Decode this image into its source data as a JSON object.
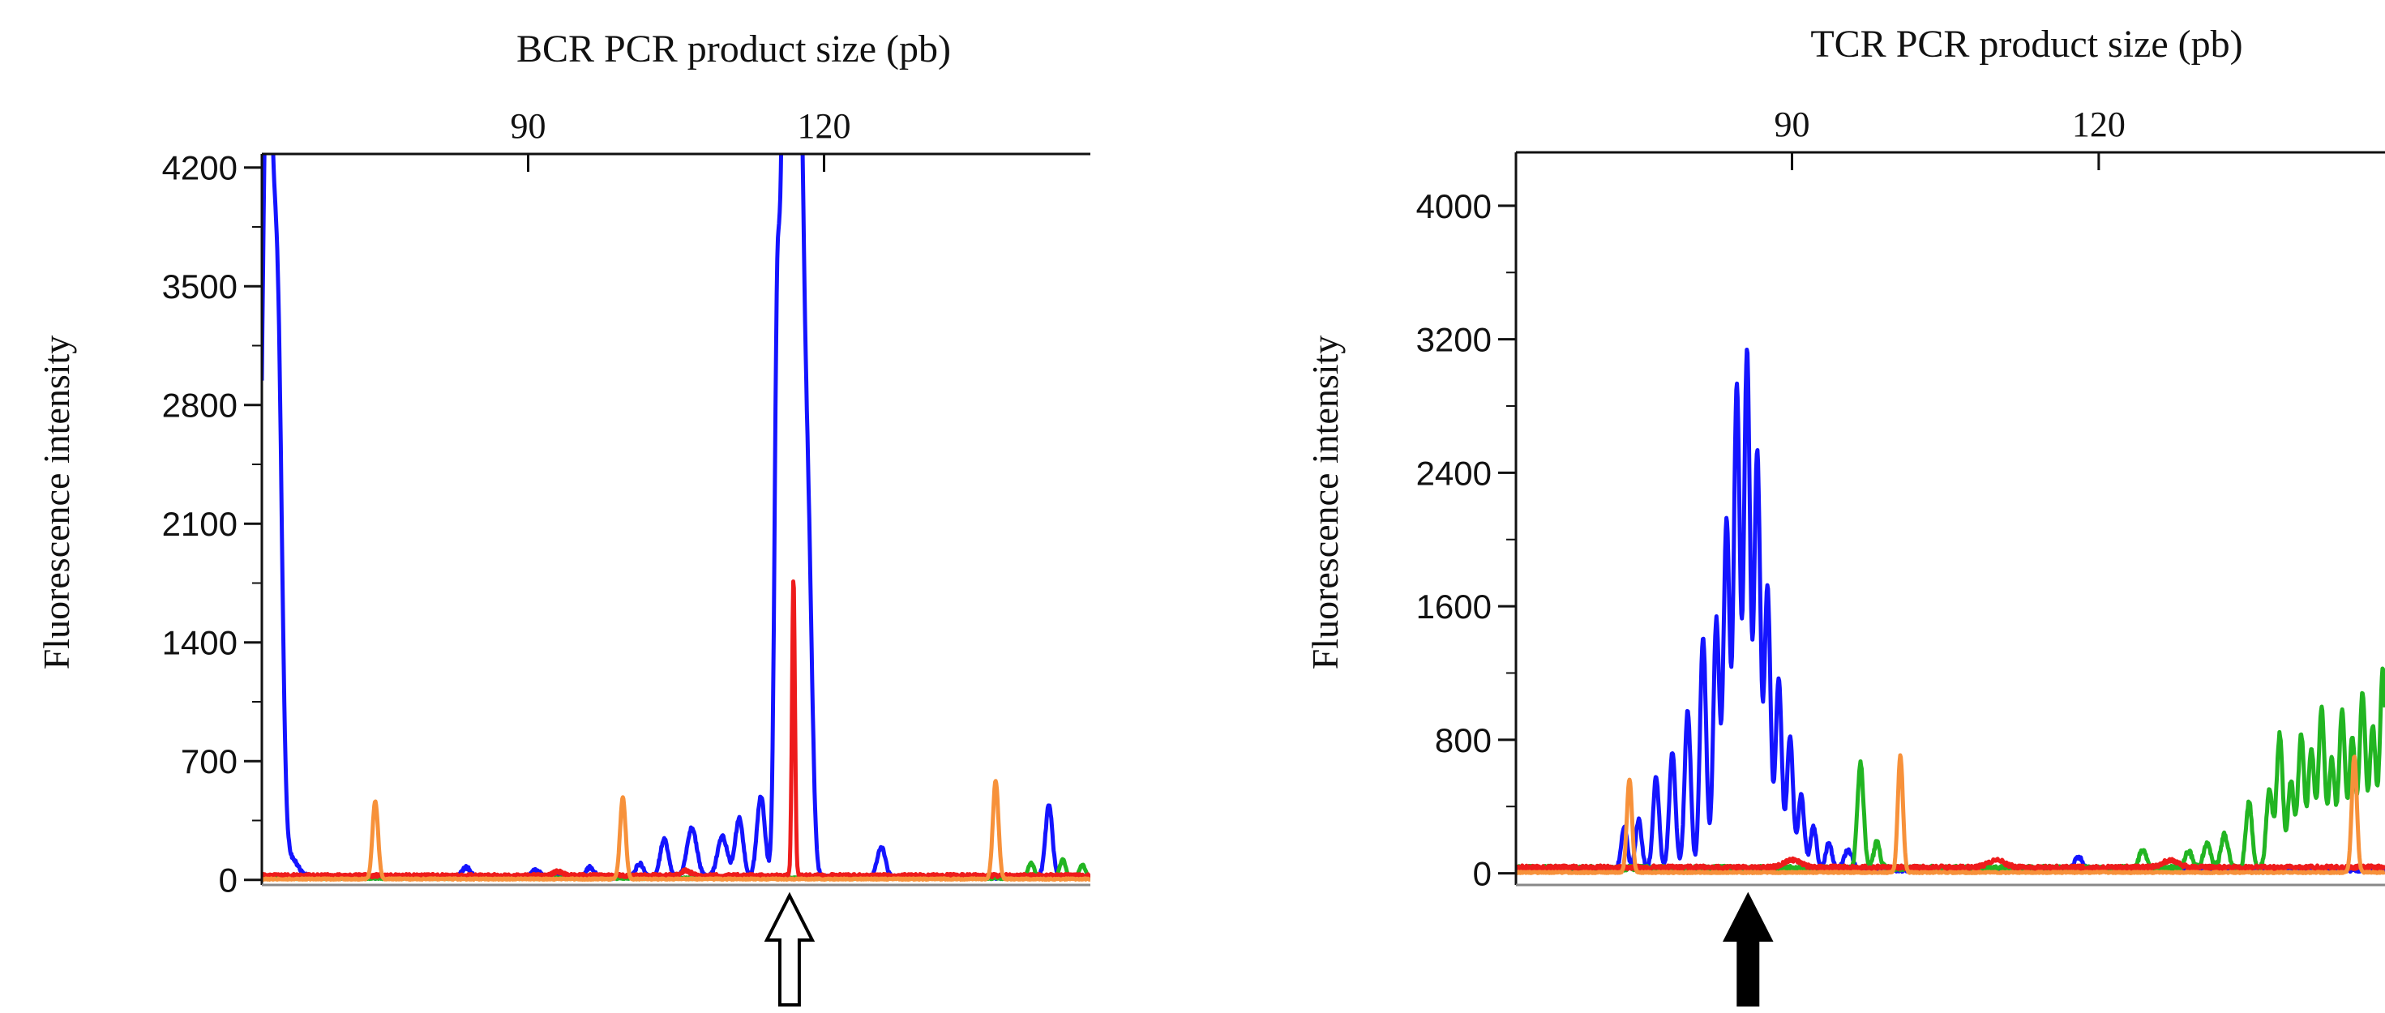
{
  "chart_data": [
    {
      "type": "line",
      "id": "bcr",
      "title": "BCR PCR product size (pb)",
      "ylabel": "Fluorescence intensity",
      "xlabel_position": "top",
      "xlim": [
        63,
        147
      ],
      "ylim": [
        -30,
        4280
      ],
      "x_ticks": [
        90,
        120
      ],
      "y_ticks": [
        0,
        700,
        1400,
        2100,
        2800,
        3500,
        4200
      ],
      "arrow": {
        "style": "open",
        "x": 116.5
      },
      "series": [
        {
          "name": "blue",
          "color": "#1414ff",
          "peaks": [
            [
              63.4,
              2800,
              0.5
            ],
            [
              63.9,
              2750,
              0.6
            ],
            [
              64.7,
              2100,
              0.4
            ],
            [
              65.8,
              120,
              0.8
            ],
            [
              83.7,
              60,
              0.4
            ],
            [
              90.8,
              45,
              0.4
            ],
            [
              96.3,
              60,
              0.4
            ],
            [
              101.3,
              80,
              0.4
            ],
            [
              103.8,
              230,
              0.4
            ],
            [
              106.6,
              290,
              0.5
            ],
            [
              109.7,
              240,
              0.5
            ],
            [
              111.4,
              350,
              0.4
            ],
            [
              113.6,
              480,
              0.4
            ],
            [
              115.2,
              2200,
              0.25
            ],
            [
              116.0,
              4300,
              0.5
            ],
            [
              116.7,
              4300,
              0.5
            ],
            [
              117.5,
              4300,
              0.45
            ],
            [
              118.4,
              1800,
              0.4
            ],
            [
              125.8,
              180,
              0.4
            ],
            [
              142.8,
              430,
              0.35
            ]
          ],
          "baseline": 15,
          "noise": 10
        },
        {
          "name": "green",
          "color": "#22b522",
          "peaks": [
            [
              141.0,
              90,
              0.3
            ],
            [
              144.2,
              110,
              0.3
            ],
            [
              146.2,
              80,
              0.3
            ]
          ],
          "baseline": 10,
          "noise": 6
        },
        {
          "name": "red",
          "color": "#ee1c1c",
          "peaks": [
            [
              116.9,
              1750,
              0.15
            ],
            [
              93.0,
              25,
              0.5
            ],
            [
              106.0,
              30,
              0.5
            ]
          ],
          "baseline": 25,
          "noise": 10
        },
        {
          "name": "orange",
          "color": "#f7913a",
          "peaks": [
            [
              74.5,
              460,
              0.28
            ],
            [
              99.6,
              480,
              0.28
            ],
            [
              137.4,
              580,
              0.28
            ]
          ],
          "baseline": 5,
          "noise": 4
        }
      ]
    },
    {
      "type": "line",
      "id": "tcr",
      "title": "TCR PCR product size (pb)",
      "ylabel": "Fluorescence intensity",
      "xlabel_position": "top",
      "xlim": [
        63,
        148
      ],
      "ylim": [
        -70,
        4320
      ],
      "x_ticks": [
        90,
        120
      ],
      "y_ticks": [
        0,
        800,
        1600,
        2400,
        3200,
        4000
      ],
      "arrow": {
        "style": "solid",
        "x": 85.7
      },
      "series": [
        {
          "name": "blue",
          "color": "#1414ff",
          "peaks": [
            [
              73.6,
              250,
              0.3
            ],
            [
              75.0,
              300,
              0.3
            ],
            [
              76.7,
              550,
              0.3
            ],
            [
              78.3,
              700,
              0.3
            ],
            [
              79.8,
              950,
              0.3
            ],
            [
              81.3,
              1400,
              0.3
            ],
            [
              82.6,
              1500,
              0.3
            ],
            [
              83.6,
              2100,
              0.3
            ],
            [
              84.6,
              2900,
              0.3
            ],
            [
              85.6,
              3100,
              0.3
            ],
            [
              86.6,
              2500,
              0.3
            ],
            [
              87.6,
              1700,
              0.3
            ],
            [
              88.7,
              1150,
              0.3
            ],
            [
              89.8,
              800,
              0.3
            ],
            [
              90.9,
              450,
              0.3
            ],
            [
              92.1,
              260,
              0.3
            ],
            [
              93.6,
              160,
              0.3
            ],
            [
              95.5,
              120,
              0.4
            ],
            [
              118.0,
              80,
              0.4
            ]
          ],
          "baseline": 20,
          "noise": 12
        },
        {
          "name": "green",
          "color": "#22b522",
          "peaks": [
            [
              96.7,
              630,
              0.3
            ],
            [
              98.3,
              160,
              0.3
            ],
            [
              124.3,
              110,
              0.35
            ],
            [
              128.8,
              100,
              0.35
            ],
            [
              130.6,
              150,
              0.35
            ],
            [
              132.3,
              200,
              0.35
            ],
            [
              134.7,
              400,
              0.3
            ],
            [
              136.7,
              480,
              0.3
            ],
            [
              137.7,
              800,
              0.3
            ],
            [
              138.8,
              520,
              0.3
            ],
            [
              139.8,
              800,
              0.3
            ],
            [
              140.8,
              720,
              0.3
            ],
            [
              141.8,
              950,
              0.3
            ],
            [
              142.8,
              650,
              0.3
            ],
            [
              143.8,
              940,
              0.3
            ],
            [
              144.8,
              780,
              0.3
            ],
            [
              145.8,
              1050,
              0.3
            ],
            [
              146.8,
              850,
              0.3
            ],
            [
              147.8,
              1200,
              0.3
            ]
          ],
          "baseline": 30,
          "noise": 15
        },
        {
          "name": "red",
          "color": "#ee1c1c",
          "peaks": [
            [
              90.0,
              45,
              0.8
            ],
            [
              110.0,
              45,
              0.8
            ],
            [
              127.0,
              40,
              0.8
            ]
          ],
          "baseline": 35,
          "noise": 12
        },
        {
          "name": "orange",
          "color": "#f7913a",
          "peaks": [
            [
              74.1,
              560,
              0.25
            ],
            [
              100.6,
              700,
              0.25
            ],
            [
              145.0,
              700,
              0.25
            ]
          ],
          "baseline": 5,
          "noise": 4
        }
      ]
    }
  ]
}
